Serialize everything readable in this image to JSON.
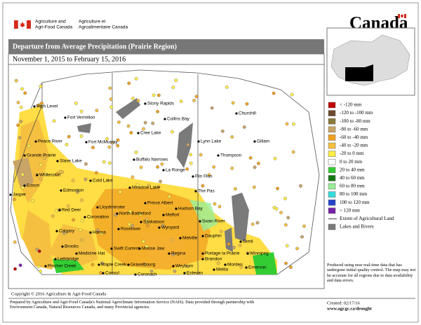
{
  "header": {
    "agency_en": [
      "Agriculture and",
      "Agri-Food Canada"
    ],
    "agency_fr": [
      "Agriculture et",
      "Agroalimentaire Canada"
    ],
    "wordmark": "Canada"
  },
  "title": "Departure from Average Precipitation (Prairie Region)",
  "date_range": "November 1, 2015 to February 15, 2016",
  "legend": [
    {
      "label": "< -120 mm",
      "color": "#c00000"
    },
    {
      "label": "-120 to -100 mm",
      "color": "#6b4a2b"
    },
    {
      "label": "-100 to -80 mm",
      "color": "#8c7a3c"
    },
    {
      "label": "-80 to -60 mm",
      "color": "#c8a466"
    },
    {
      "label": "-60 to -40 mm",
      "color": "#f0a020"
    },
    {
      "label": "-40 to -20 mm",
      "color": "#f5c040"
    },
    {
      "label": "-20 to 0 mm",
      "color": "#ffee44"
    },
    {
      "label": "0 to 20 mm",
      "color": "#ffffff"
    },
    {
      "label": "20 to 40 mm",
      "color": "#33cc33"
    },
    {
      "label": "40 to 60 mm",
      "color": "#117711"
    },
    {
      "label": "60 to 80 mm",
      "color": "#99ee99"
    },
    {
      "label": "80 to 100 mm",
      "color": "#33dddd"
    },
    {
      "label": "100 to 120 mm",
      "color": "#2244cc"
    },
    {
      "label": "> 120 mm",
      "color": "#7722aa"
    },
    {
      "label": "Extent of Agricultural Land",
      "color": "#777777"
    },
    {
      "label": "Lakes and Rivers",
      "color": "#7a7a7a"
    }
  ],
  "places": [
    "High Level",
    "Fort Vermilion",
    "Peace River",
    "Grande Prairie",
    "Fort McMurray",
    "Slave Lake",
    "Whitecourt",
    "Edson",
    "Jasper",
    "Edmonton",
    "Cold Lake",
    "Red Deer",
    "Coronation",
    "Lloydminster",
    "Calgary",
    "Hanna",
    "Brooks",
    "Medicine Hat",
    "Lethbridge",
    "Pincher Creek",
    "Stony Rapids",
    "Collins Bay",
    "Cree Lake",
    "Buffalo Narrows",
    "La Ronge",
    "Meadow Lake",
    "Prince Albert",
    "North Battleford",
    "Hudson Bay",
    "Melfort",
    "Saskatoon",
    "Rosetown",
    "Wynyard",
    "Swift Current",
    "Moose Jaw",
    "Regina",
    "Maple Creek",
    "Consul",
    "Gravelbourg",
    "Coronach",
    "Weyburn",
    "Estevan",
    "Melita",
    "Brandon",
    "Morden",
    "Emerson",
    "Winnipeg",
    "Portage la Prairie",
    "Gimli",
    "Dauphin",
    "Swan River",
    "Melville",
    "The Pas",
    "Flin Flon",
    "Lynn Lake",
    "Thompson",
    "Gillam",
    "Churchill"
  ],
  "footer": {
    "note": "Produced using near real-time data that has undergone initial quality control.  The map may not be accurate for all regions due to data availability and data errors.",
    "copyright": "Copyright © 2016 Agriculture & Agri-Food Canada",
    "prepared": "Prepared by Agriculture and Agri-Food Canada's National Agroclimate Information Service (NAIS).  Data provided through partnership with Environment Canada, Natural Resources Canada, and many Provincial agencies.",
    "created": "Created: 02/17/16",
    "url": "www.agr.gc.ca/drought"
  }
}
